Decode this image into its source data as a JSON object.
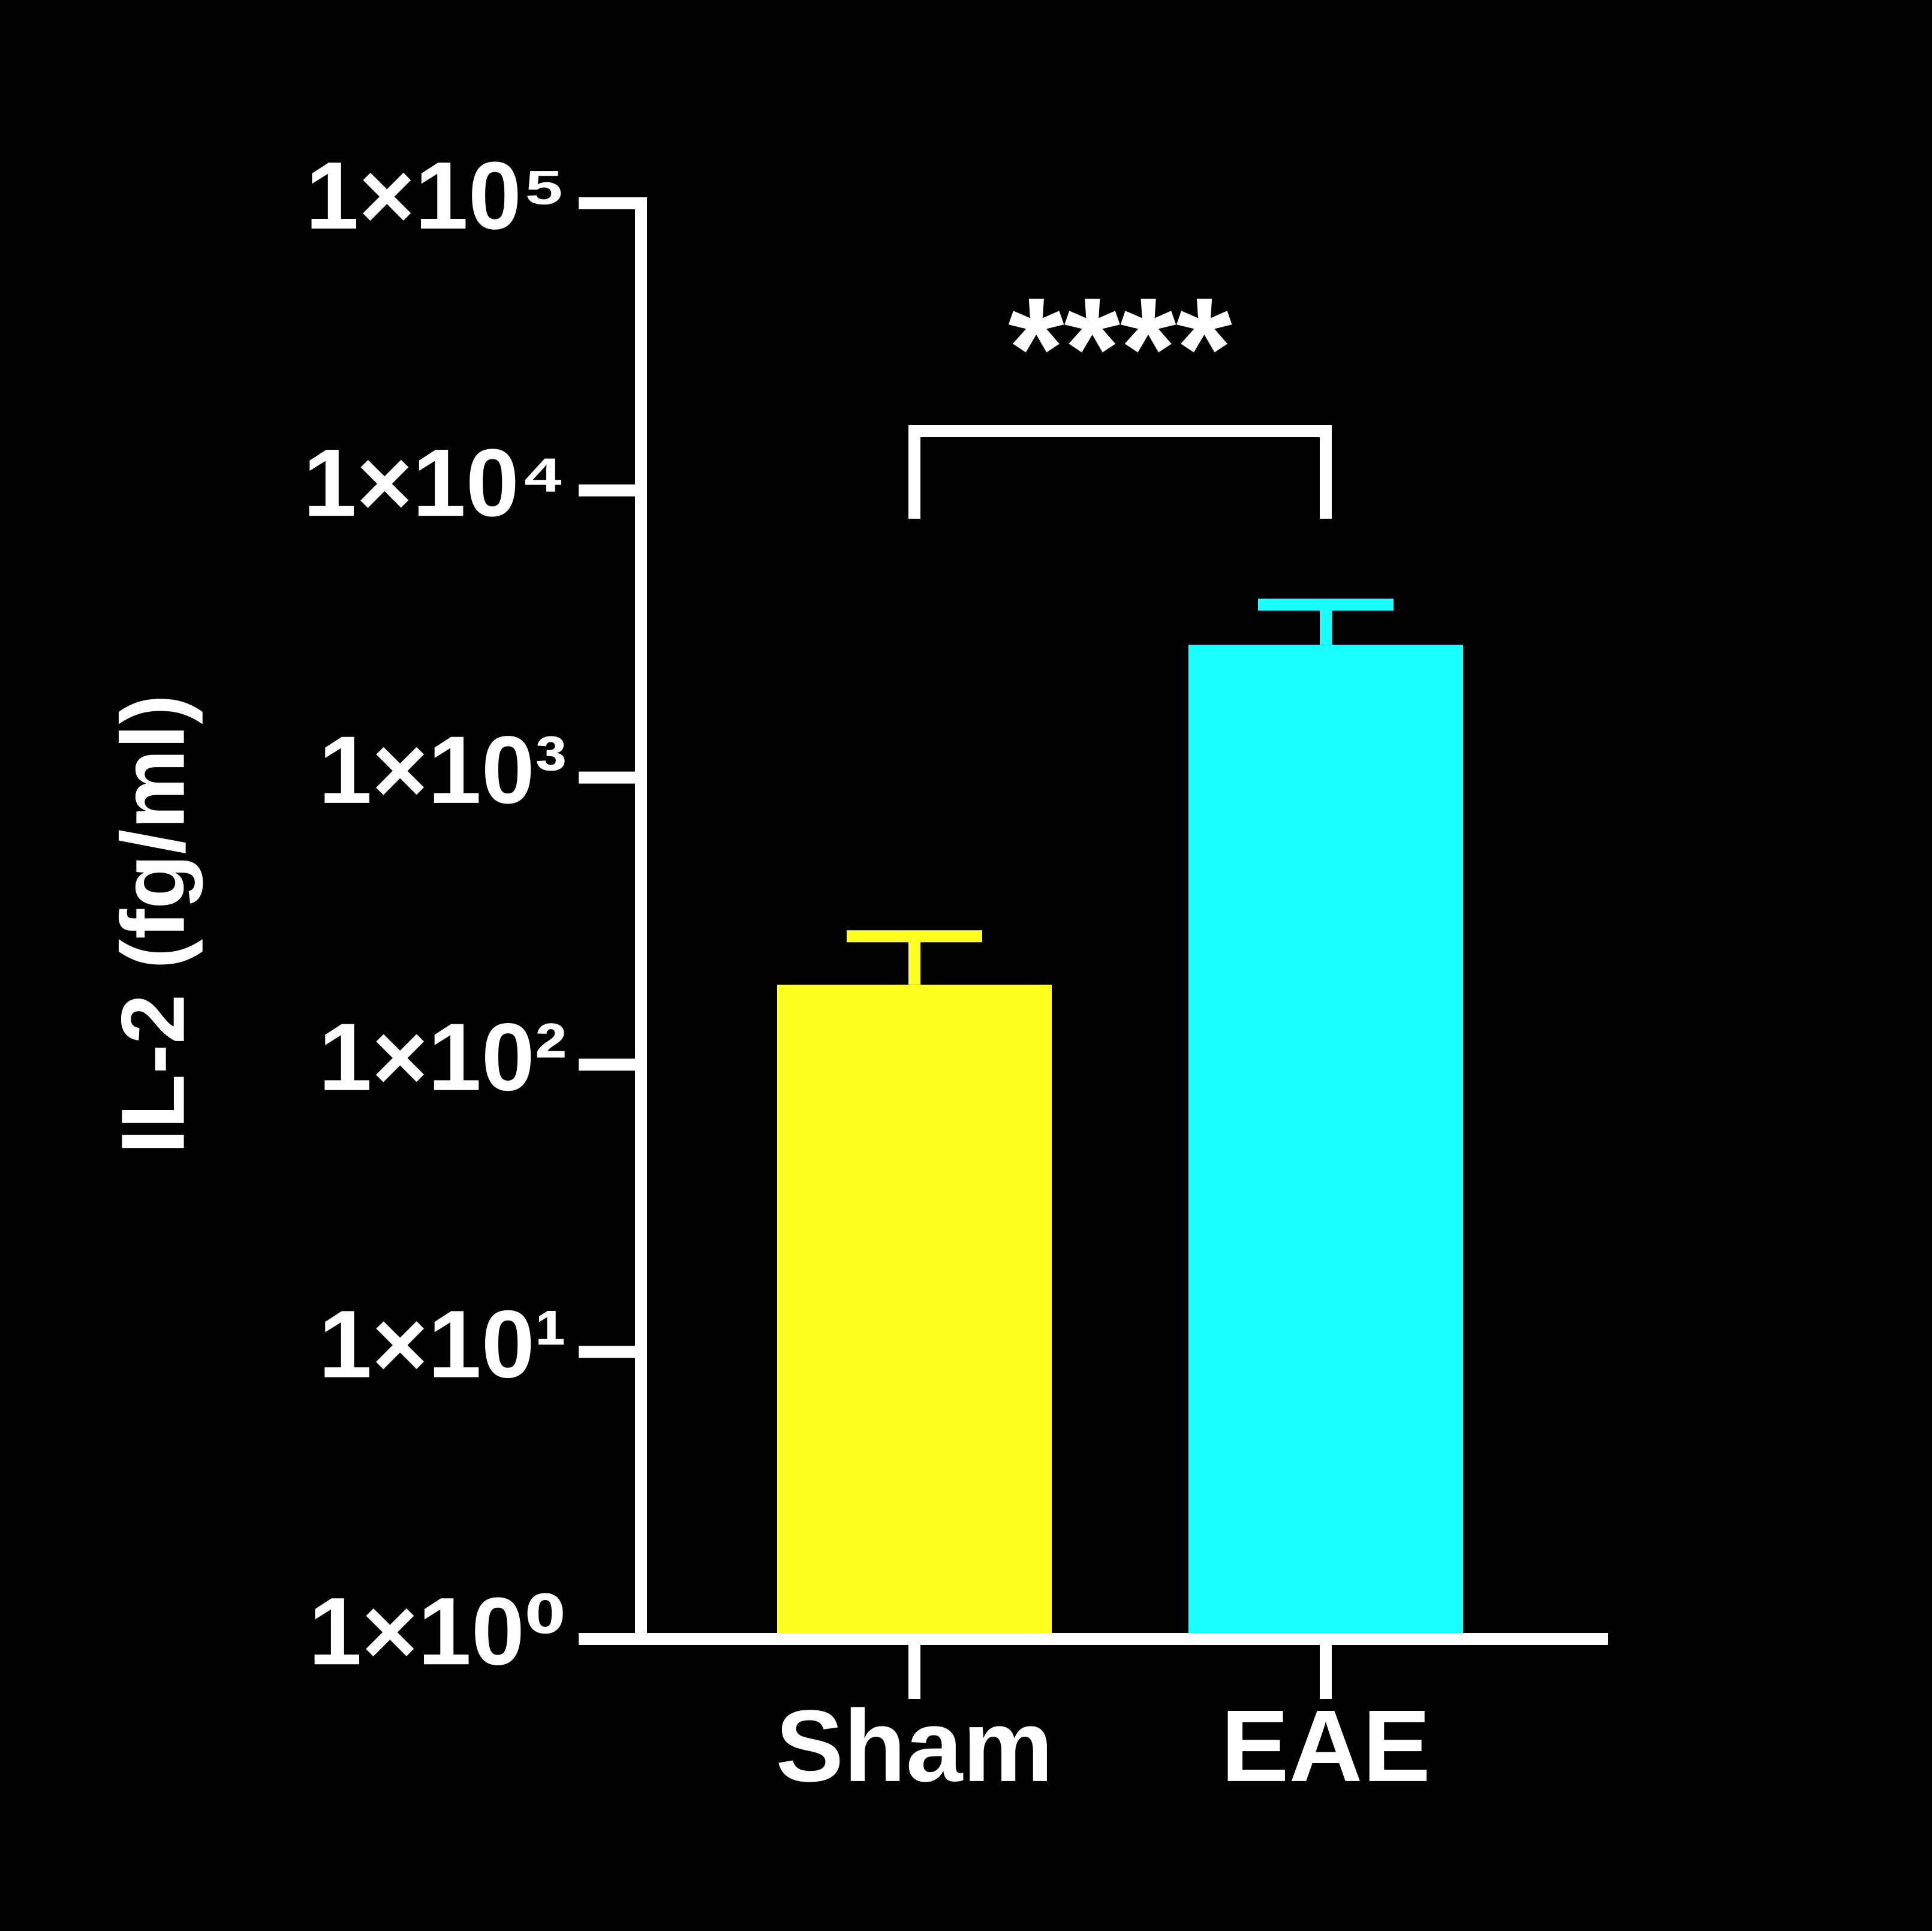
{
  "chart_data": {
    "type": "bar",
    "y_label": "IL-2 (fg/ml)",
    "categories": [
      "Sham",
      "EAE"
    ],
    "values": [
      190,
      2900
    ],
    "errors": [
      90,
      1100
    ],
    "colors": [
      "#ffff22",
      "#1affff"
    ],
    "ylim": [
      1,
      100000
    ],
    "log_y": true,
    "yticks": [
      {
        "value": 1,
        "label": "1×10⁰"
      },
      {
        "value": 10,
        "label": "1×10¹"
      },
      {
        "value": 100,
        "label": "1×10²"
      },
      {
        "value": 1000,
        "label": "1×10³"
      },
      {
        "value": 10000,
        "label": "1×10⁴"
      },
      {
        "value": 100000,
        "label": "1×10⁵"
      }
    ],
    "annotation": "****"
  }
}
